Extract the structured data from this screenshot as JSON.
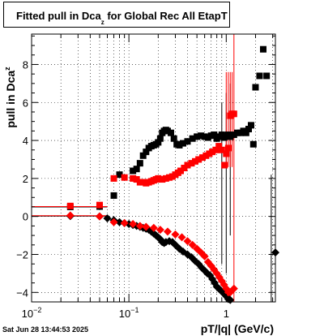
{
  "title": {
    "main": "Fitted pull in Dca",
    "sub": "z",
    "rest": " for Global Rec All EtapT"
  },
  "footer_text": "Sat Jun 28 13:44:53 2025",
  "chart_data": {
    "type": "scatter",
    "xscale": "log",
    "xlim": [
      0.01,
      3.2
    ],
    "ylim": [
      -4.5,
      9.6
    ],
    "xlabel": "pT/|q| (GeV/c)",
    "ylabel_main": "pull in Dca",
    "ylabel_sub": "z",
    "grid": true,
    "x_ticks": [
      {
        "value": 0.01,
        "label": "10",
        "exp": "−2"
      },
      {
        "value": 0.1,
        "label": "10",
        "exp": "−1"
      },
      {
        "value": 1,
        "label": "1",
        "exp": ""
      }
    ],
    "y_ticks": [
      {
        "value": -4,
        "label": "−4"
      },
      {
        "value": -2,
        "label": "−2"
      },
      {
        "value": 0,
        "label": "0"
      },
      {
        "value": 2,
        "label": "2"
      },
      {
        "value": 4,
        "label": "4"
      },
      {
        "value": 6,
        "label": "6"
      },
      {
        "value": 8,
        "label": "8"
      }
    ],
    "series": [
      {
        "color": "#000000",
        "marker": "square",
        "x": [
          0.025,
          0.05,
          0.07,
          0.08,
          0.11,
          0.12,
          0.13,
          0.14,
          0.15,
          0.16,
          0.17,
          0.18,
          0.19,
          0.2,
          0.21,
          0.22,
          0.23,
          0.24,
          0.25,
          0.27,
          0.29,
          0.31,
          0.33,
          0.36,
          0.4,
          0.45,
          0.5,
          0.55,
          0.6,
          0.65,
          0.7,
          0.75,
          0.8,
          0.85,
          0.9,
          0.95,
          1.0,
          1.05,
          1.1,
          1.2,
          1.3,
          1.4,
          1.5,
          1.6,
          1.7,
          1.8,
          1.9,
          2.0,
          2.2,
          2.4,
          2.6
        ],
        "y": [
          0.5,
          0.52,
          1.1,
          2.2,
          2.4,
          2.5,
          2.8,
          3.2,
          3.4,
          3.6,
          3.7,
          3.75,
          3.8,
          3.9,
          4.1,
          4.4,
          4.5,
          4.55,
          4.5,
          4.4,
          4.1,
          3.8,
          3.75,
          3.85,
          3.95,
          4.1,
          4.2,
          4.25,
          4.2,
          4.15,
          4.25,
          4.3,
          4.1,
          4.2,
          4.3,
          4.15,
          4.25,
          4.3,
          4.2,
          4.3,
          4.4,
          4.4,
          4.5,
          4.4,
          4.6,
          4.8,
          3.8,
          6.8,
          7.4,
          8.8,
          7.4
        ],
        "x_lo": [
          0.01,
          0.04
        ],
        "y_err_x": [
          0.8,
          0.9,
          1.0,
          1.1,
          1.2
        ],
        "y_err_lo": [
          0.0,
          -2.5,
          -3.0,
          -1.0,
          0.0
        ],
        "y_err_hi": [
          0.0,
          6.0,
          6.5,
          7.0,
          0.0
        ]
      },
      {
        "color": "#ff0000",
        "marker": "square",
        "x": [
          0.025,
          0.05,
          0.07,
          0.09,
          0.11,
          0.12,
          0.13,
          0.14,
          0.15,
          0.16,
          0.17,
          0.18,
          0.19,
          0.2,
          0.22,
          0.24,
          0.26,
          0.28,
          0.3,
          0.32,
          0.34,
          0.37,
          0.4,
          0.44,
          0.48,
          0.52,
          0.57,
          0.62,
          0.67,
          0.72,
          0.78,
          0.84,
          0.9,
          0.96,
          1.0,
          1.05,
          1.1,
          1.15,
          1.2
        ],
        "y": [
          0.55,
          0.6,
          2.0,
          2.05,
          2.0,
          1.95,
          1.8,
          1.8,
          1.75,
          1.8,
          1.85,
          1.9,
          1.95,
          2.0,
          1.95,
          2.0,
          2.05,
          2.1,
          2.2,
          2.3,
          2.4,
          2.55,
          2.7,
          2.8,
          2.9,
          3.0,
          3.1,
          3.2,
          3.3,
          3.4,
          3.5,
          3.7,
          3.5,
          2.7,
          3.3,
          3.6,
          5.3,
          5.4,
          5.4
        ]
      },
      {
        "color": "#000000",
        "marker": "diamond",
        "x": [
          0.025,
          0.05,
          0.06,
          0.07,
          0.08,
          0.09,
          0.1,
          0.11,
          0.12,
          0.13,
          0.14,
          0.15,
          0.16,
          0.17,
          0.18,
          0.19,
          0.2,
          0.21,
          0.22,
          0.23,
          0.24,
          0.26,
          0.28,
          0.3,
          0.33,
          0.36,
          0.4,
          0.44,
          0.48,
          0.52,
          0.56,
          0.6,
          0.64,
          0.68,
          0.72,
          0.76,
          0.8,
          0.84,
          0.88,
          0.92,
          0.96,
          1.0,
          1.05,
          1.1,
          3.2
        ],
        "y": [
          0.02,
          0.0,
          -0.1,
          -0.2,
          -0.3,
          -0.35,
          -0.4,
          -0.45,
          -0.5,
          -0.55,
          -0.6,
          -0.65,
          -0.7,
          -0.8,
          -0.9,
          -1.0,
          -1.1,
          -1.2,
          -1.35,
          -1.4,
          -1.35,
          -1.3,
          -1.35,
          -1.5,
          -1.7,
          -1.85,
          -2.0,
          -2.15,
          -2.35,
          -2.5,
          -2.7,
          -2.85,
          -3.0,
          -3.1,
          -3.3,
          -3.5,
          -3.7,
          -3.8,
          -3.9,
          -4.0,
          -4.1,
          -4.2,
          -4.35,
          -4.4,
          -1.9
        ]
      },
      {
        "color": "#ff0000",
        "marker": "diamond",
        "x": [
          0.025,
          0.05,
          0.07,
          0.09,
          0.11,
          0.13,
          0.15,
          0.18,
          0.21,
          0.25,
          0.3,
          0.35,
          0.4,
          0.45,
          0.5,
          0.55,
          0.6,
          0.65,
          0.7,
          0.75,
          0.8,
          0.85,
          0.9,
          0.95,
          1.0,
          1.05,
          1.1,
          1.2
        ],
        "y": [
          0.05,
          0.0,
          -0.3,
          -0.35,
          -0.4,
          -0.5,
          -0.55,
          -0.6,
          -0.7,
          -0.8,
          -0.95,
          -1.1,
          -1.3,
          -1.5,
          -1.7,
          -1.9,
          -2.1,
          -2.4,
          -2.6,
          -2.8,
          -3.0,
          -3.2,
          -3.4,
          -3.6,
          -3.8,
          -4.0,
          -4.0,
          -3.8
        ]
      }
    ]
  }
}
